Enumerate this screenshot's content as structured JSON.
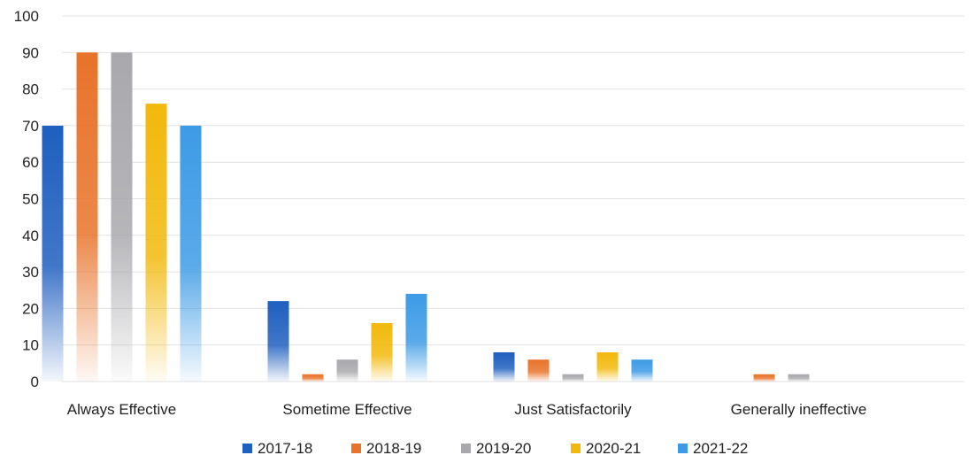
{
  "chart_data": {
    "type": "bar",
    "title": "",
    "xlabel": "",
    "ylabel": "",
    "ylim": [
      0,
      100
    ],
    "yticks": [
      0,
      10,
      20,
      30,
      40,
      50,
      60,
      70,
      80,
      90,
      100
    ],
    "grid": true,
    "legend_position": "bottom",
    "categories": [
      "Always Effective",
      "Sometime Effective",
      "Just Satisfactorily",
      "Generally ineffective"
    ],
    "series": [
      {
        "name": "2017-18",
        "color": "#1f5fbf",
        "values": [
          70,
          22,
          8,
          0
        ]
      },
      {
        "name": "2018-19",
        "color": "#e8732a",
        "values": [
          90,
          2,
          6,
          2
        ]
      },
      {
        "name": "2019-20",
        "color": "#a9a9ad",
        "values": [
          90,
          6,
          2,
          2
        ]
      },
      {
        "name": "2020-21",
        "color": "#f2b90c",
        "values": [
          76,
          16,
          8,
          0
        ]
      },
      {
        "name": "2021-22",
        "color": "#3d9be6",
        "values": [
          70,
          24,
          6,
          0
        ]
      }
    ]
  }
}
